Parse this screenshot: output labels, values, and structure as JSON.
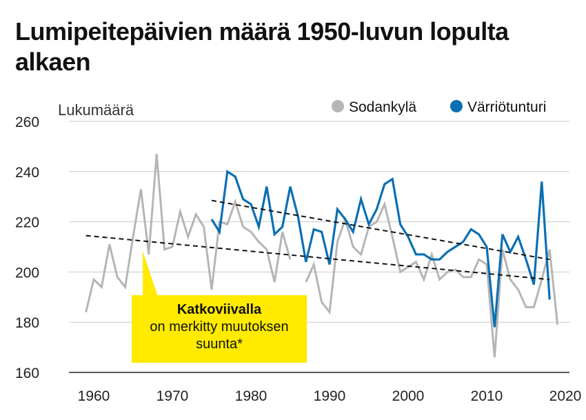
{
  "chart_data": {
    "type": "line",
    "title": "Lumipeitepäivien määrä 1950-luvun lopulta alkaen",
    "ylabel": "Lukumäärä",
    "xlabel": "",
    "xlim": [
      1954,
      2022
    ],
    "ylim": [
      160,
      260
    ],
    "yticks": [
      160,
      180,
      200,
      220,
      240,
      260
    ],
    "xticks": [
      1960,
      1970,
      1980,
      1990,
      2000,
      2010,
      2020
    ],
    "grid": "horizontal",
    "legend": "top-right",
    "series": [
      {
        "name": "Sodankylä",
        "color": "#b5b5b5",
        "points": [
          [
            1959,
            184
          ],
          [
            1960,
            197
          ],
          [
            1961,
            194
          ],
          [
            1962,
            211
          ],
          [
            1963,
            198
          ],
          [
            1964,
            194
          ],
          [
            1965,
            214
          ],
          [
            1966,
            233
          ],
          [
            1967,
            207
          ],
          [
            1968,
            247
          ],
          [
            1969,
            209
          ],
          [
            1970,
            210
          ],
          [
            1971,
            224
          ],
          [
            1972,
            214
          ],
          [
            1973,
            223
          ],
          [
            1974,
            218
          ],
          [
            1975,
            193
          ],
          [
            1976,
            220
          ],
          [
            1977,
            219
          ],
          [
            1978,
            228
          ],
          [
            1979,
            218
          ],
          [
            1980,
            216
          ],
          [
            1981,
            212
          ],
          [
            1982,
            209
          ],
          [
            1983,
            196
          ],
          [
            1984,
            216
          ],
          [
            1985,
            205
          ],
          null,
          [
            1987,
            196
          ],
          [
            1988,
            203
          ],
          [
            1989,
            188
          ],
          [
            1990,
            184
          ],
          [
            1991,
            212
          ],
          [
            1992,
            221
          ],
          [
            1993,
            210
          ],
          [
            1994,
            207
          ],
          [
            1995,
            218
          ],
          [
            1996,
            220
          ],
          [
            1997,
            227
          ],
          [
            1998,
            214
          ],
          [
            1999,
            200
          ],
          [
            2000,
            202
          ],
          [
            2001,
            204
          ],
          [
            2002,
            197
          ],
          [
            2003,
            207
          ],
          [
            2004,
            197
          ],
          [
            2005,
            200
          ],
          [
            2006,
            201
          ],
          [
            2007,
            198
          ],
          [
            2008,
            198
          ],
          [
            2009,
            205
          ],
          [
            2010,
            203
          ],
          [
            2011,
            166
          ],
          [
            2012,
            209
          ],
          [
            2013,
            197
          ],
          [
            2014,
            193
          ],
          [
            2015,
            186
          ],
          [
            2016,
            186
          ],
          [
            2017,
            197
          ],
          [
            2018,
            209
          ],
          [
            2019,
            179
          ]
        ]
      },
      {
        "name": "Värriötunturi",
        "color": "#0a6fb3",
        "points": [
          [
            1975,
            221
          ],
          [
            1976,
            216
          ],
          [
            1977,
            240
          ],
          [
            1978,
            238
          ],
          [
            1979,
            229
          ],
          [
            1980,
            227
          ],
          [
            1981,
            218
          ],
          [
            1982,
            234
          ],
          [
            1983,
            215
          ],
          [
            1984,
            218
          ],
          [
            1985,
            234
          ],
          [
            1986,
            222
          ],
          [
            1987,
            204
          ],
          [
            1988,
            217
          ],
          [
            1989,
            216
          ],
          [
            1990,
            203
          ],
          [
            1991,
            225
          ],
          [
            1992,
            221
          ],
          [
            1993,
            216
          ],
          [
            1994,
            229
          ],
          [
            1995,
            219
          ],
          [
            1996,
            225
          ],
          [
            1997,
            235
          ],
          [
            1998,
            237
          ],
          [
            1999,
            219
          ],
          [
            2000,
            214
          ],
          [
            2001,
            207
          ],
          [
            2002,
            207
          ],
          [
            2003,
            205
          ],
          [
            2004,
            205
          ],
          [
            2005,
            208
          ],
          [
            2006,
            210
          ],
          [
            2007,
            212
          ],
          [
            2008,
            217
          ],
          [
            2009,
            215
          ],
          [
            2010,
            210
          ],
          [
            2011,
            178
          ],
          [
            2012,
            215
          ],
          [
            2013,
            208
          ],
          [
            2014,
            214
          ],
          [
            2015,
            205
          ],
          [
            2016,
            195
          ],
          [
            2017,
            236
          ],
          [
            2018,
            189
          ]
        ]
      }
    ],
    "trendlines": [
      {
        "series": "Sodankylä",
        "from": [
          1959,
          214.5
        ],
        "to": [
          2018,
          197
        ]
      },
      {
        "series": "Värriötunturi",
        "from": [
          1975,
          228.5
        ],
        "to": [
          2018,
          205
        ]
      }
    ],
    "annotation": {
      "bold": "Katkoviivalla",
      "lines": [
        "on merkitty muutoksen",
        "suunta*"
      ]
    }
  }
}
